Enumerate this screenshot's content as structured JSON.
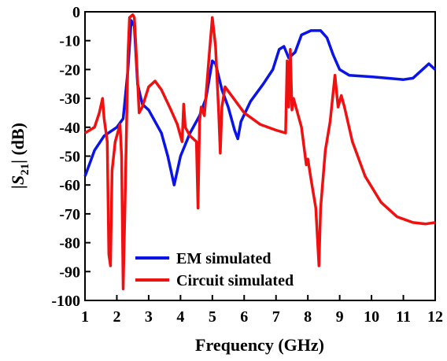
{
  "chart_data": {
    "type": "line",
    "xlabel": "Frequency (GHz)",
    "ylabel_parts": [
      "|S",
      "21",
      "| (dB)"
    ],
    "xlim": [
      1,
      12
    ],
    "xticks": [
      1,
      2,
      3,
      4,
      5,
      6,
      7,
      8,
      9,
      10,
      11,
      12
    ],
    "ylim": [
      -100,
      0
    ],
    "yticks": [
      0,
      -10,
      -20,
      -30,
      -40,
      -50,
      -60,
      -70,
      -80,
      -90,
      -100
    ],
    "legend": "lower center",
    "series": [
      {
        "name": "EM simulated",
        "color": "#0a14e6",
        "x": [
          1,
          1.3,
          1.6,
          2.0,
          2.2,
          2.35,
          2.45,
          2.55,
          2.65,
          2.8,
          3.0,
          3.4,
          3.6,
          3.8,
          4.0,
          4.3,
          4.6,
          4.8,
          5.0,
          5.1,
          5.3,
          5.5,
          5.7,
          5.8,
          5.9,
          6.2,
          6.6,
          6.9,
          7.1,
          7.25,
          7.4,
          7.6,
          7.8,
          8.1,
          8.4,
          8.6,
          8.8,
          9.0,
          9.3,
          10,
          10.5,
          11,
          11.3,
          11.6,
          11.8,
          12
        ],
        "values": [
          -57,
          -48,
          -43,
          -40,
          -37,
          -20,
          -3,
          -5,
          -25,
          -32,
          -34,
          -42,
          -50,
          -60,
          -50,
          -42,
          -36,
          -30,
          -17,
          -18,
          -27,
          -33,
          -41,
          -44,
          -38,
          -31,
          -25,
          -20,
          -13,
          -12,
          -16,
          -14,
          -8,
          -6.5,
          -6.5,
          -9,
          -15,
          -20,
          -22,
          -22.5,
          -23,
          -23.5,
          -23,
          -20,
          -18,
          -20
        ]
      },
      {
        "name": "Circuit simulated",
        "color": "#f01010",
        "x": [
          1,
          1.3,
          1.45,
          1.55,
          1.6,
          1.7,
          1.75,
          1.8,
          1.85,
          1.95,
          2.05,
          2.1,
          2.15,
          2.2,
          2.25,
          2.35,
          2.4,
          2.5,
          2.55,
          2.6,
          2.7,
          2.8,
          3.0,
          3.2,
          3.4,
          3.7,
          3.9,
          4.05,
          4.1,
          4.15,
          4.3,
          4.5,
          4.55,
          4.6,
          4.65,
          4.75,
          4.9,
          5.0,
          5.1,
          5.2,
          5.25,
          5.3,
          5.4,
          5.6,
          6.0,
          6.5,
          7.0,
          7.3,
          7.35,
          7.4,
          7.45,
          7.5,
          7.55,
          7.8,
          7.95,
          8.0,
          8.1,
          8.25,
          8.35,
          8.4,
          8.55,
          8.7,
          8.85,
          8.95,
          9.05,
          9.15,
          9.4,
          9.8,
          10.3,
          10.8,
          11.3,
          11.7,
          12
        ],
        "values": [
          -42,
          -40,
          -35,
          -30,
          -37,
          -45,
          -84,
          -88,
          -55,
          -45,
          -41,
          -39,
          -50,
          -96,
          -70,
          -15,
          -2,
          -1,
          -2,
          -12,
          -35,
          -33,
          -26,
          -24,
          -27,
          -34,
          -39,
          -45,
          -32,
          -40,
          -43,
          -45,
          -68,
          -38,
          -33,
          -36,
          -15,
          -2,
          -12,
          -35,
          -49,
          -33,
          -26,
          -29,
          -35,
          -39,
          -41,
          -42,
          -17,
          -33,
          -13,
          -34,
          -30,
          -40,
          -53,
          -51,
          -58,
          -68,
          -88,
          -68,
          -48,
          -38,
          -22,
          -33,
          -29,
          -33,
          -45,
          -57,
          -66,
          -71,
          -73,
          -73.5,
          -73
        ]
      }
    ]
  }
}
